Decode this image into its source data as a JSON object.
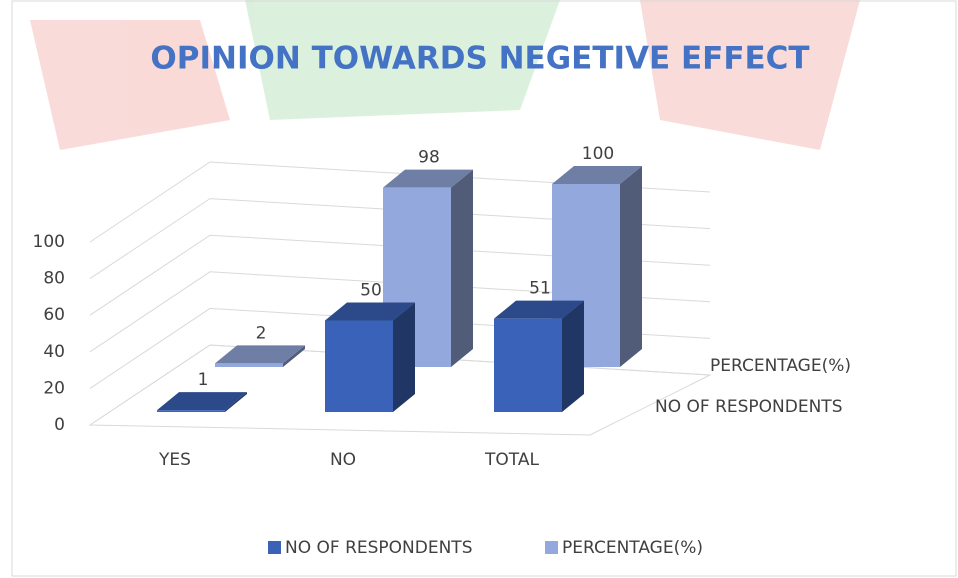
{
  "chart_data": {
    "type": "bar3d",
    "title": "OPINION TOWARDS NEGETIVE EFFECT",
    "categories": [
      "YES",
      "NO",
      "TOTAL"
    ],
    "series": [
      {
        "name": "NO OF RESPONDENTS",
        "color": "#3a62b8",
        "values": [
          1,
          50,
          51
        ]
      },
      {
        "name": "PERCENTAGE(%)",
        "color": "#93a8dc",
        "values": [
          2,
          98,
          100
        ]
      }
    ],
    "ylim": [
      0,
      100
    ],
    "yticks": [
      0,
      20,
      40,
      60,
      80,
      100
    ],
    "grid": true,
    "legend": "bottom"
  }
}
